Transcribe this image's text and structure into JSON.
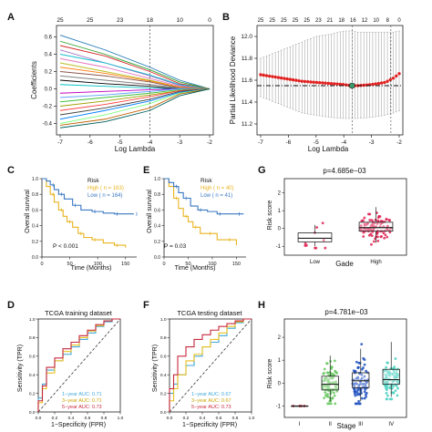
{
  "panels": {
    "A": {
      "letter": "A",
      "xlabel": "Log Lambda",
      "ylabel": "Coefficients",
      "xticks": [
        "-7",
        "-6",
        "-5",
        "-4",
        "-3",
        "-2"
      ],
      "yticks": [
        "-0.4",
        "-0.2",
        "0.0",
        "0.2",
        "0.4",
        "0.6"
      ],
      "top_ticks": [
        "25",
        "25",
        "23",
        "18",
        "10",
        "0"
      ]
    },
    "B": {
      "letter": "B",
      "xlabel": "Log Lambda",
      "ylabel": "Partial Likelihood Deviance",
      "xticks": [
        "-7",
        "-6",
        "-5",
        "-4",
        "-3",
        "-2"
      ],
      "yticks": [
        "11.2",
        "11.4",
        "11.6",
        "11.8",
        "12.0"
      ],
      "top_ticks": [
        "25",
        "25",
        "25",
        "25",
        "25",
        "23",
        "21",
        "18",
        "16",
        "12",
        "10",
        "8",
        "0"
      ]
    },
    "C": {
      "letter": "C",
      "xlabel": "Time (Months)",
      "ylabel": "Overall survival",
      "legend_title": "Risk",
      "legend_high": "High ( n = 163)",
      "legend_low": "Low ( n = 164)",
      "pvalue": "P < 0.001",
      "xticks": [
        "0",
        "50",
        "100",
        "150"
      ],
      "yticks": [
        "0.0",
        "0.2",
        "0.4",
        "0.6",
        "0.8",
        "1.0"
      ]
    },
    "E": {
      "letter": "E",
      "xlabel": "Time (Months)",
      "ylabel": "Overall survival",
      "legend_title": "Risk",
      "legend_high": "High ( n = 40)",
      "legend_low": "Low ( n = 41)",
      "pvalue": "P = 0.03",
      "xticks": [
        "0",
        "50",
        "100",
        "150"
      ],
      "yticks": [
        "0.0",
        "0.2",
        "0.4",
        "0.6",
        "0.8",
        "1.0"
      ]
    },
    "G": {
      "letter": "G",
      "title": "p=4.685e−03",
      "xlabel": "Gade",
      "ylabel": "Risk score",
      "categories": [
        "Low",
        "High"
      ],
      "yticks": [
        "-1",
        "0",
        "1",
        "2"
      ]
    },
    "D": {
      "letter": "D",
      "title": "TCGA training dataset",
      "xlabel": "1−Specificity (FPR)",
      "ylabel": "Sensitivity (TPR)",
      "legend": [
        "1−year AUC: 0.71",
        "3−year AUC: 0.71",
        "5−year AUC: 0.73"
      ],
      "ticks": [
        "0.0",
        "0.2",
        "0.4",
        "0.6",
        "0.8",
        "1.0"
      ]
    },
    "F": {
      "letter": "F",
      "title": "TCGA testing dataset",
      "xlabel": "1−Specificity (FPR)",
      "ylabel": "Sensitivity (TPR)",
      "legend": [
        "1−year AUC: 0.67",
        "3−year AUC: 0.67",
        "5−year AUC: 0.73"
      ],
      "ticks": [
        "0.0",
        "0.2",
        "0.4",
        "0.6",
        "0.8",
        "1.0"
      ]
    },
    "H": {
      "letter": "H",
      "title": "p=4.781e−03",
      "xlabel": "Stage",
      "ylabel": "Risk score",
      "categories": [
        "I",
        "II",
        "III",
        "IV"
      ],
      "yticks": [
        "-1",
        "0",
        "1",
        "2"
      ]
    }
  },
  "colors": {
    "km_high": "#e8b420",
    "km_low": "#3a78c2",
    "roc_1yr": "#3fa7d6",
    "roc_3yr": "#e8c020",
    "roc_5yr": "#c8283c",
    "deviance": "#e22020",
    "box_G": "#e02050",
    "box_H": [
      "#c8283c",
      "#68c860",
      "#2050c0",
      "#48d0c0"
    ]
  },
  "chart_data": [
    {
      "id": "A",
      "type": "line",
      "xlim": [
        -7,
        -2
      ],
      "ylim": [
        -0.5,
        0.7
      ],
      "lambda_min_log": -4,
      "series": [
        {
          "values": [
            0.62,
            0.45,
            0.25,
            0.1,
            0.0
          ]
        },
        {
          "values": [
            0.55,
            0.4,
            0.22,
            0.08,
            0.0
          ]
        },
        {
          "values": [
            0.5,
            0.38,
            0.2,
            0.06,
            0.0
          ]
        },
        {
          "values": [
            0.45,
            0.3,
            0.15,
            0.04,
            0.0
          ]
        },
        {
          "values": [
            0.4,
            0.3,
            0.16,
            0.05,
            0.0
          ]
        },
        {
          "values": [
            0.35,
            0.25,
            0.12,
            0.03,
            0.0
          ]
        },
        {
          "values": [
            0.3,
            0.2,
            0.1,
            0.02,
            0.0
          ]
        },
        {
          "values": [
            0.25,
            0.18,
            0.09,
            0.02,
            0.0
          ]
        },
        {
          "values": [
            0.2,
            0.15,
            0.08,
            0.01,
            0.0
          ]
        },
        {
          "values": [
            0.15,
            0.1,
            0.05,
            0.01,
            0.0
          ]
        },
        {
          "values": [
            0.1,
            0.06,
            0.03,
            0.0,
            0.0
          ]
        },
        {
          "values": [
            0.05,
            0.03,
            0.01,
            0.0,
            0.0
          ]
        },
        {
          "values": [
            -0.05,
            -0.03,
            -0.01,
            0.0,
            0.0
          ]
        },
        {
          "values": [
            -0.1,
            -0.07,
            -0.03,
            0.0,
            0.0
          ]
        },
        {
          "values": [
            -0.15,
            -0.1,
            -0.05,
            -0.01,
            0.0
          ]
        },
        {
          "values": [
            -0.2,
            -0.14,
            -0.07,
            -0.02,
            0.0
          ]
        },
        {
          "values": [
            -0.25,
            -0.18,
            -0.09,
            -0.02,
            0.0
          ]
        },
        {
          "values": [
            -0.3,
            -0.22,
            -0.12,
            -0.03,
            0.0
          ]
        },
        {
          "values": [
            -0.35,
            -0.25,
            -0.14,
            -0.04,
            0.0
          ]
        },
        {
          "values": [
            -0.4,
            -0.3,
            -0.17,
            -0.05,
            0.0
          ]
        },
        {
          "values": [
            -0.42,
            -0.35,
            -0.22,
            -0.06,
            0.0
          ]
        },
        {
          "values": [
            -0.45,
            -0.38,
            -0.25,
            -0.08,
            0.0
          ]
        }
      ],
      "x": [
        -7,
        -5.5,
        -4,
        -3,
        -2
      ]
    },
    {
      "id": "B",
      "type": "scatter",
      "xlim": [
        -7,
        -2
      ],
      "ylim": [
        11.1,
        12.1
      ],
      "x": [
        -7,
        -6.5,
        -6,
        -5.5,
        -5,
        -4.5,
        -4,
        -3.7,
        -3.5,
        -3,
        -2.5,
        -2.2,
        -2
      ],
      "values": [
        11.65,
        11.63,
        11.61,
        11.59,
        11.58,
        11.57,
        11.56,
        11.55,
        11.55,
        11.56,
        11.58,
        11.62,
        11.66
      ],
      "upper": [
        11.8,
        11.85,
        11.9,
        11.95,
        12.0,
        12.02,
        12.05,
        12.05,
        12.04,
        12.04,
        12.04,
        12.04,
        12.05
      ],
      "lower": [
        11.45,
        11.4,
        11.35,
        11.3,
        11.28,
        11.26,
        11.25,
        11.25,
        11.25,
        11.26,
        11.28,
        11.3,
        11.32
      ],
      "vlines": [
        -3.7,
        -2.3
      ],
      "hline": 11.55
    },
    {
      "id": "C",
      "type": "line",
      "xlim": [
        0,
        170
      ],
      "ylim": [
        0,
        1
      ],
      "series": [
        {
          "name": "High ( n = 163)",
          "x": [
            0,
            8,
            15,
            22,
            30,
            38,
            45,
            55,
            65,
            75,
            90,
            110,
            130,
            150
          ],
          "values": [
            1.0,
            0.9,
            0.8,
            0.7,
            0.6,
            0.52,
            0.45,
            0.38,
            0.3,
            0.25,
            0.22,
            0.18,
            0.15,
            0.12
          ]
        },
        {
          "name": "Low ( n = 164)",
          "x": [
            0,
            8,
            15,
            22,
            30,
            40,
            55,
            70,
            90,
            110,
            130,
            150,
            165
          ],
          "values": [
            1.0,
            0.97,
            0.92,
            0.86,
            0.8,
            0.74,
            0.66,
            0.6,
            0.58,
            0.56,
            0.55,
            0.55,
            0.55
          ]
        }
      ]
    },
    {
      "id": "E",
      "type": "line",
      "xlim": [
        0,
        170
      ],
      "ylim": [
        0,
        1
      ],
      "series": [
        {
          "name": "High ( n = 40)",
          "x": [
            0,
            10,
            20,
            30,
            40,
            50,
            60,
            75,
            90,
            110,
            130,
            150
          ],
          "values": [
            1.0,
            0.9,
            0.75,
            0.62,
            0.52,
            0.45,
            0.38,
            0.3,
            0.3,
            0.22,
            0.22,
            0.15
          ]
        },
        {
          "name": "Low ( n = 41)",
          "x": [
            0,
            10,
            20,
            30,
            40,
            55,
            70,
            90,
            110,
            130,
            150,
            165
          ],
          "values": [
            1.0,
            0.95,
            0.9,
            0.82,
            0.75,
            0.65,
            0.6,
            0.58,
            0.55,
            0.55,
            0.55,
            0.55
          ]
        }
      ]
    },
    {
      "id": "G",
      "type": "box",
      "categories": [
        "Low",
        "High"
      ],
      "ylim": [
        -1.5,
        2.8
      ],
      "boxes": [
        {
          "min": -1.0,
          "q1": -0.75,
          "median": -0.55,
          "q3": -0.25,
          "max": 0.2
        },
        {
          "min": -0.8,
          "q1": -0.15,
          "median": 0.05,
          "q3": 0.35,
          "max": 1.2
        }
      ]
    },
    {
      "id": "D",
      "type": "line",
      "xlim": [
        0,
        1
      ],
      "ylim": [
        0,
        1
      ],
      "series": [
        {
          "name": "1−year AUC: 0.71",
          "x": [
            0,
            0.05,
            0.1,
            0.2,
            0.3,
            0.4,
            0.5,
            0.6,
            0.7,
            0.8,
            0.9,
            1.0
          ],
          "values": [
            0,
            0.15,
            0.3,
            0.45,
            0.55,
            0.62,
            0.7,
            0.78,
            0.85,
            0.92,
            0.97,
            1.0
          ]
        },
        {
          "name": "3−year AUC: 0.71",
          "x": [
            0,
            0.05,
            0.1,
            0.2,
            0.3,
            0.4,
            0.5,
            0.6,
            0.7,
            0.8,
            0.9,
            1.0
          ],
          "values": [
            0,
            0.1,
            0.25,
            0.42,
            0.55,
            0.65,
            0.72,
            0.8,
            0.87,
            0.93,
            0.98,
            1.0
          ]
        },
        {
          "name": "5−year AUC: 0.73",
          "x": [
            0,
            0.05,
            0.1,
            0.2,
            0.3,
            0.4,
            0.5,
            0.6,
            0.7,
            0.8,
            0.9,
            1.0
          ],
          "values": [
            0,
            0.12,
            0.28,
            0.48,
            0.58,
            0.68,
            0.75,
            0.82,
            0.88,
            0.94,
            0.98,
            1.0
          ]
        }
      ]
    },
    {
      "id": "F",
      "type": "line",
      "xlim": [
        0,
        1
      ],
      "ylim": [
        0,
        1
      ],
      "series": [
        {
          "name": "1−year AUC: 0.67",
          "x": [
            0,
            0.05,
            0.1,
            0.2,
            0.3,
            0.4,
            0.5,
            0.6,
            0.7,
            0.8,
            0.9,
            1.0
          ],
          "values": [
            0,
            0.2,
            0.3,
            0.4,
            0.5,
            0.6,
            0.7,
            0.75,
            0.82,
            0.9,
            0.96,
            1.0
          ]
        },
        {
          "name": "3−year AUC: 0.67",
          "x": [
            0,
            0.05,
            0.1,
            0.2,
            0.3,
            0.4,
            0.5,
            0.6,
            0.7,
            0.8,
            0.9,
            1.0
          ],
          "values": [
            0,
            0.12,
            0.25,
            0.4,
            0.55,
            0.62,
            0.7,
            0.78,
            0.85,
            0.92,
            0.97,
            1.0
          ]
        },
        {
          "name": "5−year AUC: 0.73",
          "x": [
            0,
            0.05,
            0.1,
            0.2,
            0.3,
            0.4,
            0.5,
            0.6,
            0.7,
            0.8,
            0.9,
            1.0
          ],
          "values": [
            0,
            0.25,
            0.4,
            0.6,
            0.7,
            0.78,
            0.83,
            0.88,
            0.92,
            0.95,
            0.98,
            1.0
          ]
        }
      ]
    },
    {
      "id": "H",
      "type": "box",
      "categories": [
        "I",
        "II",
        "III",
        "IV"
      ],
      "ylim": [
        -1.5,
        2.8
      ],
      "boxes": [
        {
          "min": -1.0,
          "q1": -1.0,
          "median": -1.0,
          "q3": -1.0,
          "max": -1.0
        },
        {
          "min": -0.8,
          "q1": -0.3,
          "median": -0.05,
          "q3": 0.3,
          "max": 1.2
        },
        {
          "min": -0.8,
          "q1": -0.2,
          "median": 0.1,
          "q3": 0.45,
          "max": 1.5
        },
        {
          "min": -0.6,
          "q1": -0.05,
          "median": 0.15,
          "q3": 0.6,
          "max": 1.8
        }
      ]
    }
  ]
}
